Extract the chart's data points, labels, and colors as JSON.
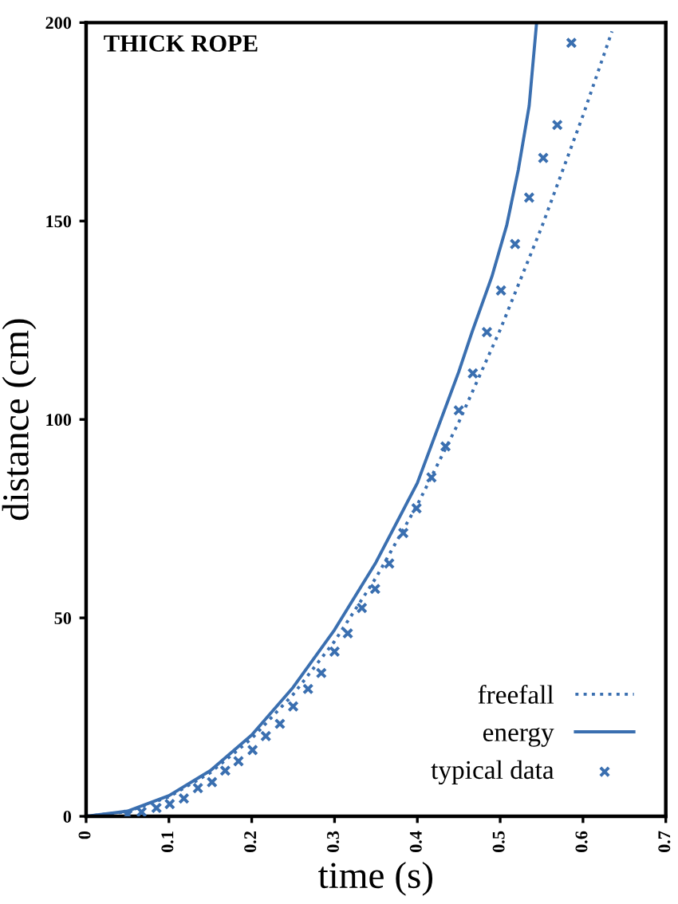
{
  "chart_data": {
    "type": "line",
    "title": "THICK ROPE",
    "xlabel": "time (s)",
    "ylabel": "distance (cm)",
    "xlim": [
      0,
      0.7
    ],
    "ylim": [
      0,
      200
    ],
    "xticks": [
      0,
      0.1,
      0.2,
      0.3,
      0.4,
      0.5,
      0.6,
      0.7
    ],
    "yticks": [
      0,
      50,
      100,
      150,
      200
    ],
    "grid": false,
    "legend": "bottom right",
    "series": [
      {
        "name": "freefall",
        "line_style": "dotted",
        "marker": "none",
        "color": "#3a6fb0",
        "x": [
          0,
          0.05,
          0.1,
          0.15,
          0.2,
          0.25,
          0.3,
          0.35,
          0.4,
          0.45,
          0.5,
          0.55,
          0.6,
          0.635
        ],
        "values": [
          0,
          1.2,
          4.9,
          11.0,
          19.6,
          30.7,
          44.1,
          60.1,
          78.5,
          99.3,
          122.6,
          148.4,
          176.6,
          197.8
        ]
      },
      {
        "name": "energy",
        "line_style": "solid",
        "marker": "none",
        "color": "#3a6fb0",
        "x": [
          0,
          0.05,
          0.1,
          0.15,
          0.2,
          0.25,
          0.3,
          0.35,
          0.4,
          0.45,
          0.466,
          0.49,
          0.508,
          0.522,
          0.535,
          0.544
        ],
        "values": [
          0,
          1.3,
          5.2,
          11.5,
          20.5,
          32.5,
          47,
          64,
          84,
          112,
          122,
          136,
          149,
          163,
          179,
          200
        ]
      },
      {
        "name": "typical data",
        "type": "scatter",
        "marker": "cross",
        "color": "#3a6fb0",
        "x": [
          0.05,
          0.067,
          0.085,
          0.101,
          0.118,
          0.135,
          0.152,
          0.168,
          0.184,
          0.201,
          0.217,
          0.234,
          0.25,
          0.268,
          0.284,
          0.3,
          0.316,
          0.333,
          0.349,
          0.366,
          0.383,
          0.399,
          0.417,
          0.434,
          0.45,
          0.467,
          0.484,
          0.501,
          0.518,
          0.535,
          0.552,
          0.569,
          0.586
        ],
        "values": [
          0.4,
          1.1,
          2.1,
          3.1,
          4.5,
          7.1,
          8.6,
          11.5,
          13.9,
          16.7,
          20.2,
          23.3,
          27.7,
          32.1,
          36.1,
          41.5,
          46.1,
          52.5,
          57.3,
          63.7,
          71.4,
          77.6,
          85.4,
          93.2,
          102.3,
          111.6,
          122.0,
          132.5,
          144.2,
          155.9,
          165.9,
          174.2,
          194.9
        ]
      }
    ]
  }
}
